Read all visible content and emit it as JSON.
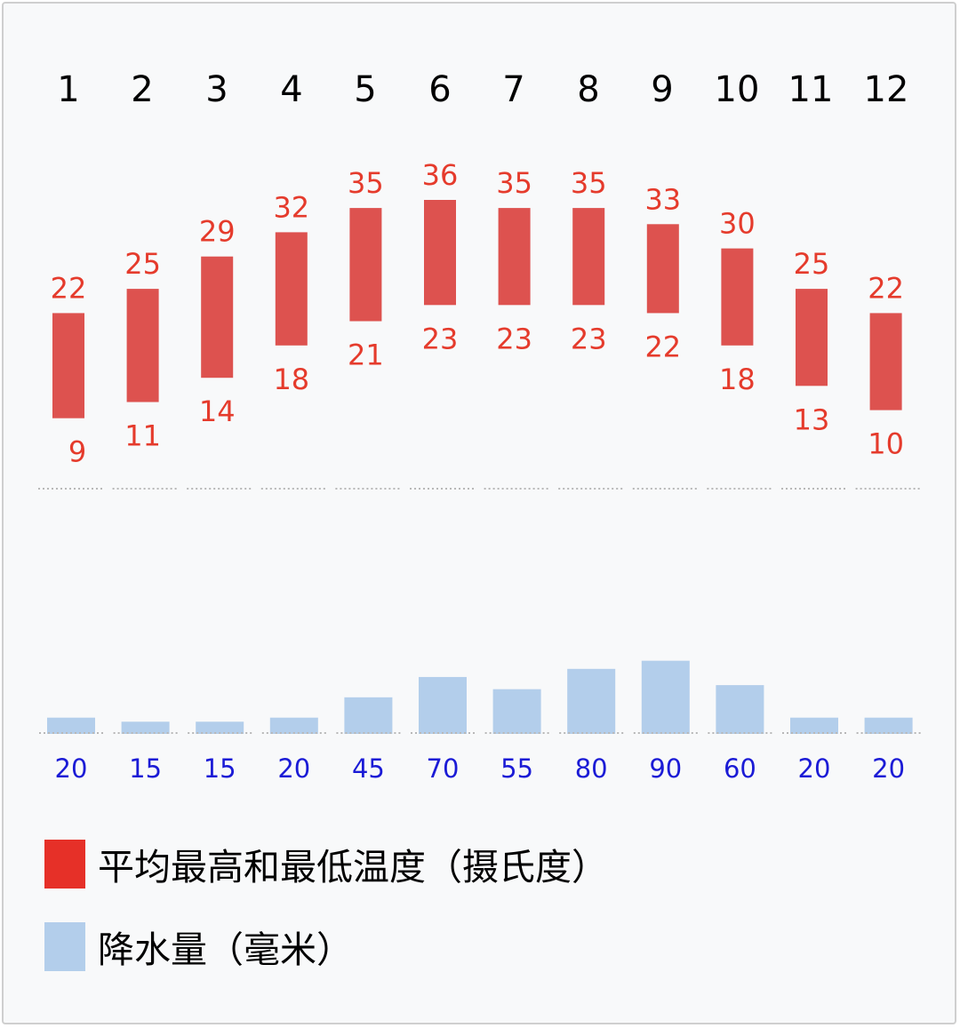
{
  "chart_data": {
    "type": "bar",
    "categories": [
      "1",
      "2",
      "3",
      "4",
      "5",
      "6",
      "7",
      "8",
      "9",
      "10",
      "11",
      "12"
    ],
    "series": [
      {
        "name": "平均最高和最低温度（摄氏度）",
        "type": "range-bar",
        "high": [
          22,
          25,
          29,
          32,
          35,
          36,
          35,
          35,
          33,
          30,
          25,
          22
        ],
        "low": [
          9,
          11,
          14,
          18,
          21,
          23,
          23,
          23,
          22,
          18,
          13,
          10
        ]
      },
      {
        "name": "降水量（毫米）",
        "type": "bar",
        "values": [
          20,
          15,
          15,
          20,
          45,
          70,
          55,
          80,
          90,
          60,
          20,
          20
        ]
      }
    ],
    "grid": false,
    "legend_position": "bottom-left"
  },
  "colors": {
    "temp_bar": "#dd524f",
    "temp_label": "#e53b2c",
    "temp_swatch": "#e63028",
    "precip_bar": "#b3ceeb",
    "precip_label": "#1b1bd6",
    "baseline": "#b8b8b8"
  }
}
